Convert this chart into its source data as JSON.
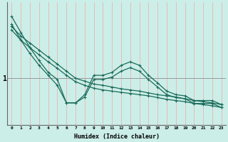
{
  "xlabel": "Humidex (Indice chaleur)",
  "ylabel": "1",
  "background_color": "#cceee8",
  "line_color": "#1a6b5a",
  "vgrid_color": "#e8b4b0",
  "hgrid_color": "#999999",
  "x_ticks": [
    0,
    1,
    2,
    3,
    4,
    5,
    6,
    7,
    8,
    9,
    10,
    11,
    12,
    13,
    14,
    15,
    16,
    17,
    18,
    19,
    20,
    21,
    22,
    23
  ],
  "xlim": [
    -0.5,
    23.5
  ],
  "ylim": [
    0.2,
    2.3
  ],
  "series": [
    [
      2.05,
      1.78,
      1.52,
      1.3,
      1.1,
      0.98,
      0.58,
      0.58,
      0.72,
      1.05,
      1.05,
      1.1,
      1.22,
      1.28,
      1.22,
      1.05,
      0.92,
      0.78,
      0.72,
      0.7,
      0.62,
      0.62,
      0.62,
      0.55
    ],
    [
      1.92,
      1.65,
      1.42,
      1.22,
      1.05,
      0.88,
      0.58,
      0.58,
      0.68,
      0.98,
      0.98,
      1.02,
      1.12,
      1.18,
      1.12,
      0.98,
      0.85,
      0.72,
      0.67,
      0.65,
      0.57,
      0.57,
      0.57,
      0.5
    ],
    [
      1.88,
      1.72,
      1.6,
      1.48,
      1.36,
      1.24,
      1.12,
      1.0,
      0.95,
      0.9,
      0.88,
      0.85,
      0.82,
      0.8,
      0.78,
      0.75,
      0.72,
      0.7,
      0.68,
      0.65,
      0.62,
      0.6,
      0.58,
      0.55
    ],
    [
      1.82,
      1.65,
      1.52,
      1.4,
      1.28,
      1.17,
      1.05,
      0.94,
      0.88,
      0.83,
      0.8,
      0.78,
      0.76,
      0.74,
      0.72,
      0.7,
      0.67,
      0.64,
      0.62,
      0.6,
      0.57,
      0.55,
      0.53,
      0.5
    ]
  ]
}
